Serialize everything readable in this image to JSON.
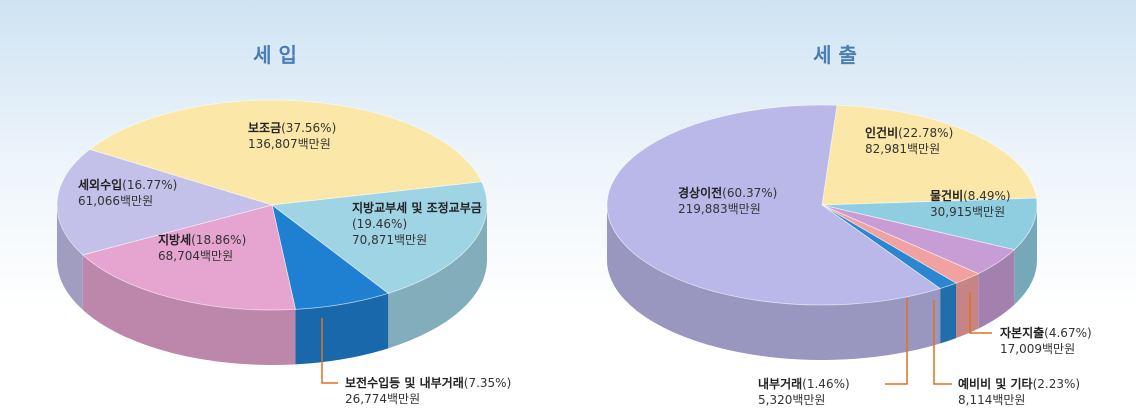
{
  "chart_data": [
    {
      "type": "pie",
      "title": "세 입",
      "categories": [
        "보조금",
        "지방교부세 및 조정교부금",
        "보전수입등 및 내부거래",
        "지방세",
        "세외수입"
      ],
      "values": [
        37.56,
        19.46,
        7.35,
        18.86,
        16.77
      ],
      "value_labels": [
        "(37.56%)",
        "(19.46%)",
        "(7.35%)",
        "(18.86%)",
        "(16.77%)"
      ],
      "amounts": [
        "136,807백만원",
        "70,871백만원",
        "26,774백만원",
        "68,704백만원",
        "61,066백만원"
      ],
      "colors": [
        "#fbe7a8",
        "#9fd4e4",
        "#1f7fd0",
        "#e6a4d0",
        "#c3c0ea"
      ]
    },
    {
      "type": "pie",
      "title": "세 출",
      "categories": [
        "인건비",
        "물건비",
        "자본지출",
        "예비비 및 기타",
        "내부거래",
        "경상이전"
      ],
      "values": [
        22.78,
        8.49,
        4.67,
        2.23,
        1.46,
        60.37
      ],
      "value_labels": [
        "(22.78%)",
        "(8.49%)",
        "(4.67%)",
        "(2.23%)",
        "(1.46%)",
        "(60.37%)"
      ],
      "amounts": [
        "82,981백만원",
        "30,915백만원",
        "17,009백만원",
        "8,114백만원",
        "5,320백만원",
        "219,883백만원"
      ],
      "colors": [
        "#fbe7a8",
        "#8fcee1",
        "#c89cd4",
        "#f2a1a1",
        "#2a86d0",
        "#bab7e9"
      ]
    }
  ]
}
